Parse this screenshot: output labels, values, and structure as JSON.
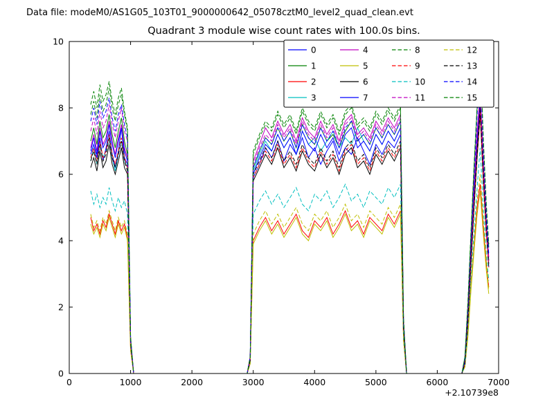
{
  "header": {
    "text": "Data file: modeM0/AS1G05_103T01_9000000642_05078cztM0_level2_quad_clean.evt"
  },
  "chart_data": {
    "type": "line",
    "title": "Quadrant 3 module wise count rates with 100.0s bins.",
    "xlabel": "",
    "ylabel": "",
    "x_offset_label": "+2.10739e8",
    "bin_seconds": 100.0,
    "xlim": [
      0,
      7000
    ],
    "ylim": [
      0,
      10
    ],
    "x_ticks": [
      0,
      1000,
      2000,
      3000,
      4000,
      5000,
      6000,
      7000
    ],
    "y_ticks": [
      0,
      2,
      4,
      6,
      8,
      10
    ],
    "grid": false,
    "legend": {
      "position": "upper right inside",
      "columns": 4,
      "rows": 4
    },
    "x": [
      350,
      400,
      450,
      500,
      550,
      600,
      650,
      700,
      750,
      800,
      850,
      900,
      950,
      1000,
      1050,
      2000,
      2900,
      2950,
      3000,
      3100,
      3200,
      3300,
      3400,
      3500,
      3600,
      3700,
      3800,
      3900,
      4000,
      4100,
      4200,
      4300,
      4400,
      4500,
      4600,
      4700,
      4800,
      4900,
      5000,
      5100,
      5200,
      5300,
      5400,
      5450,
      5500,
      6000,
      6400,
      6450,
      6500,
      6550,
      6600,
      6650,
      6700,
      6750,
      6800,
      6840
    ],
    "series": [
      {
        "name": "0",
        "color": "#0000ff",
        "style": "solid",
        "values": [
          6.6,
          6.9,
          6.5,
          7.1,
          6.4,
          6.8,
          7.3,
          6.6,
          6.2,
          6.7,
          7.4,
          6.5,
          6.3,
          0.9,
          0,
          0,
          0,
          0.4,
          5.9,
          6.3,
          6.8,
          6.5,
          7.0,
          6.4,
          6.9,
          6.6,
          7.1,
          6.5,
          6.8,
          6.3,
          6.7,
          7.0,
          6.4,
          6.8,
          6.6,
          7.1,
          6.7,
          6.3,
          6.9,
          6.6,
          7.0,
          6.8,
          7.2,
          1.4,
          0,
          0,
          0,
          0.3,
          1.6,
          3.5,
          5.2,
          6.8,
          8.1,
          6.0,
          4.3,
          3.2
        ]
      },
      {
        "name": "1",
        "color": "#008000",
        "style": "solid",
        "values": [
          7.0,
          7.4,
          6.9,
          7.6,
          7.1,
          7.3,
          7.8,
          7.2,
          6.8,
          7.3,
          7.7,
          7.0,
          6.6,
          1.0,
          0,
          0,
          0,
          0.5,
          6.2,
          6.7,
          7.1,
          6.9,
          7.4,
          7.0,
          7.3,
          6.8,
          7.5,
          7.1,
          6.9,
          7.4,
          7.0,
          7.2,
          6.8,
          7.3,
          7.6,
          7.0,
          7.2,
          6.9,
          7.4,
          7.1,
          7.5,
          7.2,
          7.6,
          1.5,
          0,
          0,
          0,
          0.4,
          1.8,
          3.8,
          5.6,
          7.2,
          8.4,
          6.3,
          4.5,
          3.4
        ]
      },
      {
        "name": "2",
        "color": "#ff0000",
        "style": "solid",
        "values": [
          4.7,
          4.3,
          4.5,
          4.2,
          4.6,
          4.4,
          4.8,
          4.5,
          4.2,
          4.6,
          4.3,
          4.5,
          4.1,
          0.7,
          0,
          0,
          0,
          0.3,
          4.0,
          4.4,
          4.7,
          4.3,
          4.6,
          4.2,
          4.5,
          4.8,
          4.3,
          4.1,
          4.6,
          4.4,
          4.7,
          4.2,
          4.5,
          4.9,
          4.4,
          4.6,
          4.2,
          4.7,
          4.5,
          4.3,
          4.8,
          4.5,
          4.9,
          1.0,
          0,
          0,
          0,
          0.2,
          1.2,
          2.6,
          3.8,
          5.0,
          5.7,
          4.4,
          3.3,
          2.6
        ]
      },
      {
        "name": "3",
        "color": "#00bfbf",
        "style": "solid",
        "values": [
          6.4,
          6.8,
          6.3,
          6.9,
          6.5,
          6.7,
          7.1,
          6.5,
          6.1,
          6.6,
          7.0,
          6.4,
          6.2,
          0.9,
          0,
          0,
          0,
          0.4,
          6.1,
          6.6,
          7.0,
          6.7,
          7.2,
          6.8,
          7.1,
          6.6,
          7.3,
          6.9,
          7.1,
          6.7,
          7.0,
          7.3,
          6.8,
          7.1,
          6.9,
          7.4,
          7.0,
          6.7,
          7.2,
          6.9,
          7.3,
          7.0,
          7.4,
          1.4,
          0,
          0,
          0,
          0.3,
          1.7,
          3.6,
          5.3,
          7.0,
          8.2,
          6.1,
          4.4,
          3.3
        ]
      },
      {
        "name": "4",
        "color": "#bf00bf",
        "style": "solid",
        "values": [
          6.8,
          7.2,
          6.7,
          7.4,
          6.9,
          7.1,
          7.6,
          7.0,
          6.6,
          7.1,
          7.5,
          6.8,
          6.5,
          1.0,
          0,
          0,
          0,
          0.5,
          6.4,
          6.9,
          7.4,
          7.1,
          7.6,
          7.2,
          7.5,
          7.0,
          7.7,
          7.3,
          7.1,
          7.6,
          7.2,
          7.5,
          7.0,
          7.6,
          7.8,
          7.2,
          7.4,
          7.1,
          7.6,
          7.3,
          7.7,
          7.4,
          7.8,
          1.6,
          0,
          0,
          0,
          0.4,
          1.9,
          3.9,
          5.7,
          7.3,
          8.5,
          6.4,
          4.6,
          3.5
        ]
      },
      {
        "name": "5",
        "color": "#bfbf00",
        "style": "solid",
        "values": [
          4.5,
          4.2,
          4.4,
          4.1,
          4.5,
          4.3,
          4.7,
          4.4,
          4.1,
          4.5,
          4.2,
          4.4,
          4.0,
          0.7,
          0,
          0,
          0,
          0.3,
          3.9,
          4.3,
          4.6,
          4.2,
          4.5,
          4.1,
          4.4,
          4.7,
          4.2,
          4.0,
          4.5,
          4.3,
          4.6,
          4.1,
          4.4,
          4.8,
          4.3,
          4.5,
          4.1,
          4.6,
          4.4,
          4.2,
          4.7,
          4.4,
          4.8,
          1.0,
          0,
          0,
          0,
          0.2,
          1.1,
          2.5,
          3.7,
          4.8,
          5.5,
          4.2,
          3.1,
          2.4
        ]
      },
      {
        "name": "6",
        "color": "#000000",
        "style": "solid",
        "values": [
          6.2,
          6.5,
          6.1,
          6.7,
          6.2,
          6.4,
          6.9,
          6.3,
          6.0,
          6.4,
          6.8,
          6.2,
          6.0,
          0.9,
          0,
          0,
          0,
          0.4,
          5.8,
          6.2,
          6.6,
          6.3,
          6.8,
          6.2,
          6.5,
          6.1,
          6.7,
          6.3,
          6.1,
          6.6,
          6.2,
          6.5,
          6.0,
          6.6,
          6.8,
          6.2,
          6.4,
          6.0,
          6.6,
          6.3,
          6.7,
          6.4,
          6.8,
          1.3,
          0,
          0,
          0,
          0.3,
          1.5,
          3.3,
          5.0,
          6.5,
          7.8,
          5.8,
          4.2,
          3.9
        ]
      },
      {
        "name": "7",
        "color": "#0000ff",
        "style": "solid",
        "values": [
          6.7,
          7.1,
          6.6,
          7.3,
          6.8,
          7.0,
          7.5,
          6.9,
          6.5,
          7.0,
          7.4,
          6.7,
          6.4,
          1.0,
          0,
          0,
          0,
          0.4,
          6.0,
          6.5,
          6.9,
          6.7,
          7.2,
          6.8,
          7.1,
          6.6,
          7.3,
          6.9,
          6.7,
          7.2,
          6.8,
          7.1,
          6.6,
          7.2,
          7.4,
          6.8,
          7.0,
          6.7,
          7.2,
          6.9,
          7.3,
          7.0,
          7.4,
          1.5,
          0,
          0,
          0,
          0.3,
          1.7,
          3.6,
          5.4,
          7.0,
          8.2,
          6.1,
          4.4,
          3.3
        ]
      },
      {
        "name": "8",
        "color": "#008000",
        "style": "dashed",
        "values": [
          8.1,
          8.5,
          8.0,
          8.7,
          8.2,
          8.4,
          8.8,
          8.2,
          7.8,
          8.3,
          8.6,
          7.9,
          7.4,
          1.1,
          0,
          0,
          0,
          0.5,
          6.6,
          7.1,
          7.5,
          7.3,
          7.8,
          7.4,
          7.7,
          7.2,
          7.9,
          7.5,
          7.3,
          7.8,
          7.4,
          7.7,
          7.2,
          7.8,
          8.0,
          7.4,
          7.6,
          7.3,
          7.8,
          7.5,
          7.9,
          7.6,
          8.0,
          1.6,
          0,
          0,
          0,
          0.5,
          2.1,
          4.2,
          6.2,
          8.0,
          9.9,
          7.0,
          5.0,
          3.8
        ]
      },
      {
        "name": "9",
        "color": "#ff0000",
        "style": "dashed",
        "values": [
          6.5,
          6.8,
          6.4,
          7.0,
          6.5,
          6.7,
          7.2,
          6.6,
          6.3,
          6.7,
          7.1,
          6.5,
          6.2,
          0.9,
          0,
          0,
          0,
          0.4,
          5.9,
          6.3,
          6.7,
          6.4,
          6.9,
          6.3,
          6.6,
          6.2,
          6.8,
          6.4,
          6.2,
          6.7,
          6.3,
          6.6,
          6.1,
          6.7,
          6.9,
          6.3,
          6.5,
          6.1,
          6.7,
          6.4,
          6.8,
          6.5,
          6.9,
          1.3,
          0,
          0,
          0,
          0.3,
          1.5,
          3.4,
          5.1,
          6.6,
          7.9,
          5.9,
          4.2,
          3.2
        ]
      },
      {
        "name": "10",
        "color": "#00bfbf",
        "style": "dashed",
        "values": [
          5.5,
          5.1,
          5.4,
          5.0,
          5.3,
          5.1,
          5.6,
          5.2,
          4.9,
          5.3,
          5.0,
          5.2,
          4.8,
          0.8,
          0,
          0,
          0,
          0.3,
          4.8,
          5.2,
          5.5,
          5.1,
          5.4,
          5.0,
          5.3,
          5.6,
          5.1,
          4.9,
          5.4,
          5.2,
          5.5,
          5.0,
          5.3,
          5.7,
          5.2,
          5.4,
          5.0,
          5.5,
          5.3,
          5.1,
          5.6,
          5.3,
          5.7,
          1.1,
          0,
          0,
          0,
          0.2,
          1.3,
          2.9,
          4.3,
          5.6,
          6.8,
          5.0,
          3.6,
          2.8
        ]
      },
      {
        "name": "11",
        "color": "#bf00bf",
        "style": "dashed",
        "values": [
          7.3,
          7.7,
          7.2,
          7.9,
          7.4,
          7.6,
          8.1,
          7.5,
          7.1,
          7.6,
          8.0,
          7.3,
          7.0,
          1.0,
          0,
          0,
          0,
          0.5,
          6.3,
          6.8,
          7.2,
          7.0,
          7.5,
          7.1,
          7.4,
          6.9,
          7.6,
          7.2,
          7.0,
          7.5,
          7.1,
          7.4,
          6.9,
          7.5,
          7.7,
          7.1,
          7.3,
          7.0,
          7.5,
          7.2,
          7.6,
          7.3,
          7.7,
          1.6,
          0,
          0,
          0,
          0.4,
          1.9,
          3.8,
          5.6,
          7.2,
          8.4,
          6.3,
          4.5,
          3.4
        ]
      },
      {
        "name": "12",
        "color": "#bfbf00",
        "style": "dashed",
        "values": [
          4.8,
          4.4,
          4.6,
          4.3,
          4.7,
          4.5,
          4.9,
          4.6,
          4.3,
          4.7,
          4.4,
          4.6,
          4.2,
          0.7,
          0,
          0,
          0,
          0.3,
          4.2,
          4.6,
          4.9,
          4.5,
          4.8,
          4.4,
          4.7,
          5.0,
          4.5,
          4.3,
          4.8,
          4.6,
          4.9,
          4.4,
          4.7,
          5.1,
          4.6,
          4.8,
          4.4,
          4.9,
          4.7,
          4.5,
          5.0,
          4.7,
          5.1,
          1.1,
          0,
          0,
          0,
          0.2,
          1.2,
          2.7,
          4.0,
          5.2,
          6.0,
          4.6,
          3.4,
          2.5
        ]
      },
      {
        "name": "13",
        "color": "#000000",
        "style": "dashed",
        "values": [
          6.4,
          6.7,
          6.3,
          6.9,
          6.4,
          6.6,
          7.1,
          6.5,
          6.2,
          6.6,
          7.0,
          6.4,
          6.1,
          0.9,
          0,
          0,
          0,
          0.4,
          6.0,
          6.4,
          6.8,
          6.5,
          7.0,
          6.4,
          6.7,
          6.3,
          6.9,
          6.5,
          6.3,
          6.8,
          6.4,
          6.7,
          6.2,
          6.8,
          7.0,
          6.4,
          6.6,
          6.2,
          6.8,
          6.5,
          6.9,
          6.6,
          7.0,
          1.4,
          0,
          0,
          0,
          0.3,
          1.6,
          3.4,
          5.1,
          6.7,
          8.0,
          6.0,
          4.3,
          3.2
        ]
      },
      {
        "name": "14",
        "color": "#0000ff",
        "style": "dashed",
        "values": [
          7.6,
          8.0,
          7.5,
          8.2,
          7.7,
          7.9,
          8.3,
          7.7,
          7.3,
          7.8,
          8.1,
          7.5,
          7.1,
          1.0,
          0,
          0,
          0,
          0.5,
          6.2,
          6.7,
          7.1,
          6.9,
          7.4,
          7.0,
          7.3,
          6.8,
          7.5,
          7.1,
          6.9,
          7.4,
          7.0,
          7.3,
          6.8,
          7.4,
          7.6,
          7.0,
          7.2,
          6.9,
          7.4,
          7.1,
          7.5,
          7.2,
          7.6,
          1.5,
          0,
          0,
          0,
          0.4,
          2.0,
          4.0,
          6.0,
          7.8,
          9.4,
          6.8,
          4.8,
          3.6
        ]
      },
      {
        "name": "15",
        "color": "#008000",
        "style": "dashed",
        "values": [
          7.8,
          8.2,
          7.7,
          8.4,
          7.9,
          8.1,
          8.6,
          8.0,
          7.6,
          8.1,
          8.4,
          7.8,
          7.3,
          1.1,
          0,
          0,
          0,
          0.5,
          6.7,
          7.2,
          7.6,
          7.4,
          7.9,
          7.5,
          7.8,
          7.3,
          8.0,
          7.6,
          7.4,
          7.9,
          7.5,
          7.8,
          7.3,
          7.9,
          8.1,
          7.5,
          7.7,
          7.4,
          7.9,
          7.6,
          8.0,
          7.7,
          8.1,
          1.7,
          0,
          0,
          0,
          0.5,
          2.2,
          4.3,
          6.3,
          8.1,
          9.6,
          7.1,
          5.1,
          3.9
        ]
      }
    ]
  },
  "colors": {
    "axes": "#000000",
    "background": "#ffffff",
    "legend_edge": "#000000"
  }
}
